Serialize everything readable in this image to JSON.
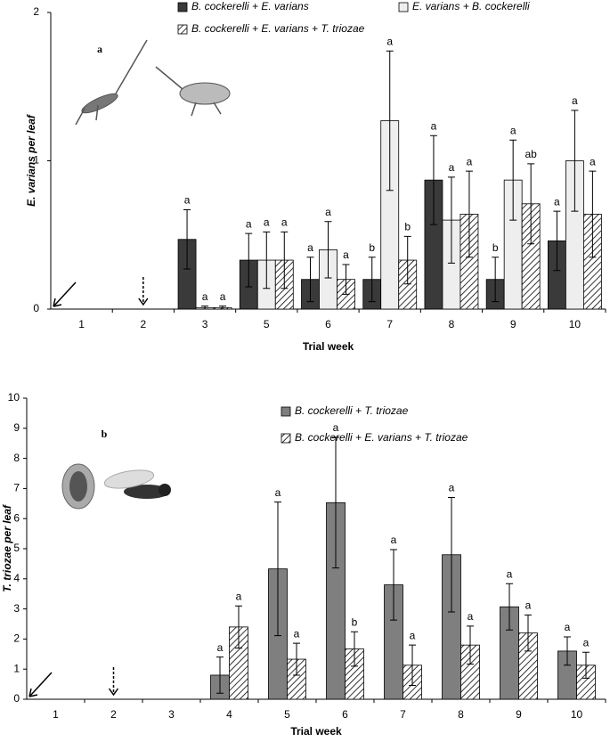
{
  "chart_data": [
    {
      "type": "bar",
      "panel_label": "a",
      "x_label": "Trial week",
      "y_label": "E. varians per leaf",
      "categories": [
        "1",
        "2",
        "3",
        "5",
        "6",
        "7",
        "8",
        "9",
        "10"
      ],
      "ylim": [
        0,
        2
      ],
      "yticks": [
        0,
        1,
        2
      ],
      "legend": "top",
      "series": [
        {
          "name": "B. cockerelli + E. varians",
          "color": "#3a3a3a",
          "hatch": false,
          "values": [
            null,
            null,
            0.47,
            0.33,
            0.2,
            0.2,
            0.87,
            0.2,
            0.46
          ],
          "errors": [
            null,
            null,
            0.2,
            0.18,
            0.15,
            0.15,
            0.3,
            0.15,
            0.2
          ],
          "labels": [
            null,
            null,
            "a",
            "a",
            "a",
            "b",
            "a",
            "b",
            "a"
          ]
        },
        {
          "name": "E. varians + B. cockerelli",
          "color": "#eeeeee",
          "hatch": false,
          "values": [
            null,
            null,
            0.01,
            0.33,
            0.4,
            1.27,
            0.6,
            0.87,
            1.0
          ],
          "errors": [
            null,
            null,
            0.01,
            0.19,
            0.19,
            0.47,
            0.29,
            0.27,
            0.34
          ],
          "labels": [
            null,
            null,
            "a",
            "a",
            "a",
            "a",
            "a",
            "a",
            "a"
          ]
        },
        {
          "name": "B. cockerelli + E. varians + T. triozae",
          "color": "#000000",
          "hatch": true,
          "values": [
            null,
            null,
            0.01,
            0.33,
            0.2,
            0.33,
            0.64,
            0.71,
            0.64
          ],
          "errors": [
            null,
            null,
            0.01,
            0.19,
            0.1,
            0.16,
            0.29,
            0.27,
            0.29
          ],
          "labels": [
            null,
            null,
            "a",
            "a",
            "a",
            "b",
            "a",
            "ab",
            "a"
          ]
        }
      ]
    },
    {
      "type": "bar",
      "panel_label": "b",
      "x_label": "Trial week",
      "y_label": "T. triozae per leaf",
      "categories": [
        "1",
        "2",
        "3",
        "4",
        "5",
        "6",
        "7",
        "8",
        "9",
        "10"
      ],
      "ylim": [
        0,
        10
      ],
      "yticks": [
        0,
        1,
        2,
        3,
        4,
        5,
        6,
        7,
        8,
        9,
        10
      ],
      "legend": "top right",
      "series": [
        {
          "name": "B. cockerelli + T. triozae",
          "color": "#7f7f7f",
          "hatch": false,
          "values": [
            null,
            null,
            null,
            0.8,
            4.33,
            6.53,
            3.8,
            4.8,
            3.07,
            1.6
          ],
          "errors": [
            null,
            null,
            null,
            0.6,
            2.22,
            2.17,
            1.17,
            1.9,
            0.77,
            0.47
          ],
          "labels": [
            null,
            null,
            null,
            "a",
            "a",
            "a",
            "a",
            "a",
            "a",
            "a"
          ]
        },
        {
          "name": "B. cockerelli + E. varians + T. triozae",
          "color": "#000000",
          "hatch": true,
          "values": [
            null,
            null,
            null,
            2.4,
            1.33,
            1.67,
            1.13,
            1.8,
            2.2,
            1.13
          ],
          "errors": [
            null,
            null,
            null,
            0.7,
            0.53,
            0.57,
            0.67,
            0.63,
            0.6,
            0.43
          ],
          "labels": [
            null,
            null,
            null,
            "a",
            "a",
            "b",
            "a",
            "a",
            "a",
            "a"
          ]
        }
      ]
    }
  ]
}
